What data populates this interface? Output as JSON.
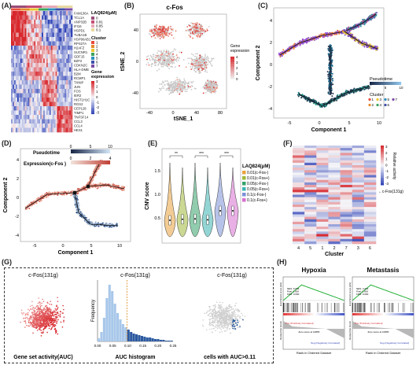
{
  "panels": {
    "A": {
      "label": "(A)",
      "genes": [
        "FAM136A",
        "TCL1A",
        "ANP32B",
        "IFI16",
        "HSPD1",
        "TUBA1B",
        "HSP90AB1",
        "RPS27A",
        "H2AFZ",
        "SUCNR1",
        "GDF15",
        "BZF2",
        "CDKN2C",
        "HLA-DMB",
        "B2M",
        "RCMP1",
        "TXNIP",
        "JUN",
        "FOS",
        "IER2",
        "HIST1H1C",
        "RGS2",
        "CEP128",
        "TIMP1",
        "TNFSF14",
        "CCL3",
        "CCL4",
        "HES1"
      ],
      "legend_title_drug": "LAQ824(μM)",
      "drug_levels": [
        "0",
        "0.01",
        "0.05",
        "0.1"
      ],
      "legend_title_cluster": "Cluster",
      "clusters": [
        "1",
        "2",
        "3",
        "4",
        "5",
        "6",
        "7"
      ],
      "legend_title_expr": "Gene expression",
      "expr_ticks": [
        "3",
        "2",
        "1",
        "0",
        "-1",
        "-2",
        "-3"
      ]
    },
    "B": {
      "label": "(B)",
      "title": "c-Fos",
      "xlabel": "tSNE_1",
      "ylabel": "tSNE_2",
      "xticks": [
        "-40",
        "0",
        "40",
        "80"
      ],
      "yticks": [
        "40",
        "0",
        "-40"
      ],
      "legend_title": "Gene expression",
      "legend_ticks": [
        "4",
        "3",
        "2",
        "1",
        "0"
      ]
    },
    "C": {
      "label": "(C)",
      "xlabel": "Component 1",
      "ylabel": "Component 2",
      "xticks": [
        "-5",
        "0",
        "5",
        "10"
      ],
      "yticks": [
        "4",
        "2",
        "0",
        "-2",
        "-4"
      ],
      "pseudotime_title": "Pseudotime",
      "pseudotime_ticks": [
        "0",
        "5",
        "10"
      ],
      "cluster_title": "Cluster",
      "cluster_entries": [
        "1",
        "3",
        "5",
        "7",
        "2",
        "4",
        "6"
      ]
    },
    "D": {
      "label": "(D)",
      "xlabel": "Component 1",
      "ylabel": "Component 2",
      "xticks": [
        "-5",
        "0",
        "5",
        "10"
      ],
      "yticks": [
        "4",
        "2",
        "0",
        "-2",
        "-4"
      ],
      "pseudotime_title": "Pseudotime",
      "pseudotime_ticks": [
        "0",
        "5",
        "10"
      ],
      "expr_title": "Expression(c-Fos )",
      "expr_ticks": [
        "0",
        "2",
        "4"
      ]
    },
    "E": {
      "label": "(E)",
      "ylabel": "CNV score",
      "yticks": [
        "1.5",
        "1.0",
        "0.5"
      ],
      "sig": [
        "**",
        "***",
        "***"
      ],
      "legend_title": "LAQ824(μM)",
      "legend_entries": [
        "0.01(c-Fos-)",
        "0.01(c-Fos+)",
        "0.05(c-Fos-)",
        "0.05(c-Fos+)",
        "0.1(c-Fos-)",
        "0.1(c-Fos+)"
      ],
      "colors": [
        "#e8a33d",
        "#9fb83a",
        "#35a26a",
        "#3bb3b0",
        "#7b8fd6",
        "#d76fcf"
      ]
    },
    "F": {
      "label": "(F)",
      "xlabel": "Cluster",
      "xticks": [
        "4",
        "5",
        "1",
        "2",
        "7",
        "3",
        "6"
      ],
      "annotation": "c-Fos(131g)",
      "legend_title": "Relative activity",
      "legend_ticks": [
        "3",
        "2",
        "1",
        "0",
        "-1",
        "-2",
        "-3"
      ]
    },
    "G": {
      "label": "(G)",
      "titles": [
        "c-Fos(131g)",
        "c-Fos(131g)",
        "c-Fos(131g)"
      ],
      "captions": [
        "Gene set activity(AUC)",
        "AUC histogram",
        "cells with AUC>0.11"
      ],
      "hist_ylabel": "Frequency",
      "hist_xticks": [
        "0.00",
        "0.05",
        "0.10",
        "0.15",
        "0.20",
        "0.25"
      ]
    },
    "H": {
      "label": "(H)",
      "titles": [
        "Hypoxia",
        "Metastasis"
      ],
      "stats": [
        [
          "NES: 6.036",
          "Pval: 0.000",
          "FDR: 0.000"
        ],
        [
          "NES: 4.214",
          "Pval: 0.000",
          "FDR: 0.000"
        ]
      ],
      "pos_text": "Pos (Positively Correlated)",
      "neg_text": "Neg (Negatively Correlated)",
      "zero_text": "Zero score at 10865",
      "xlabel": "Rank in Ordered Dataset",
      "ylabel_top": "Enrichment score (ES)",
      "ylabel_bottom": "Ranked list metric"
    }
  }
}
